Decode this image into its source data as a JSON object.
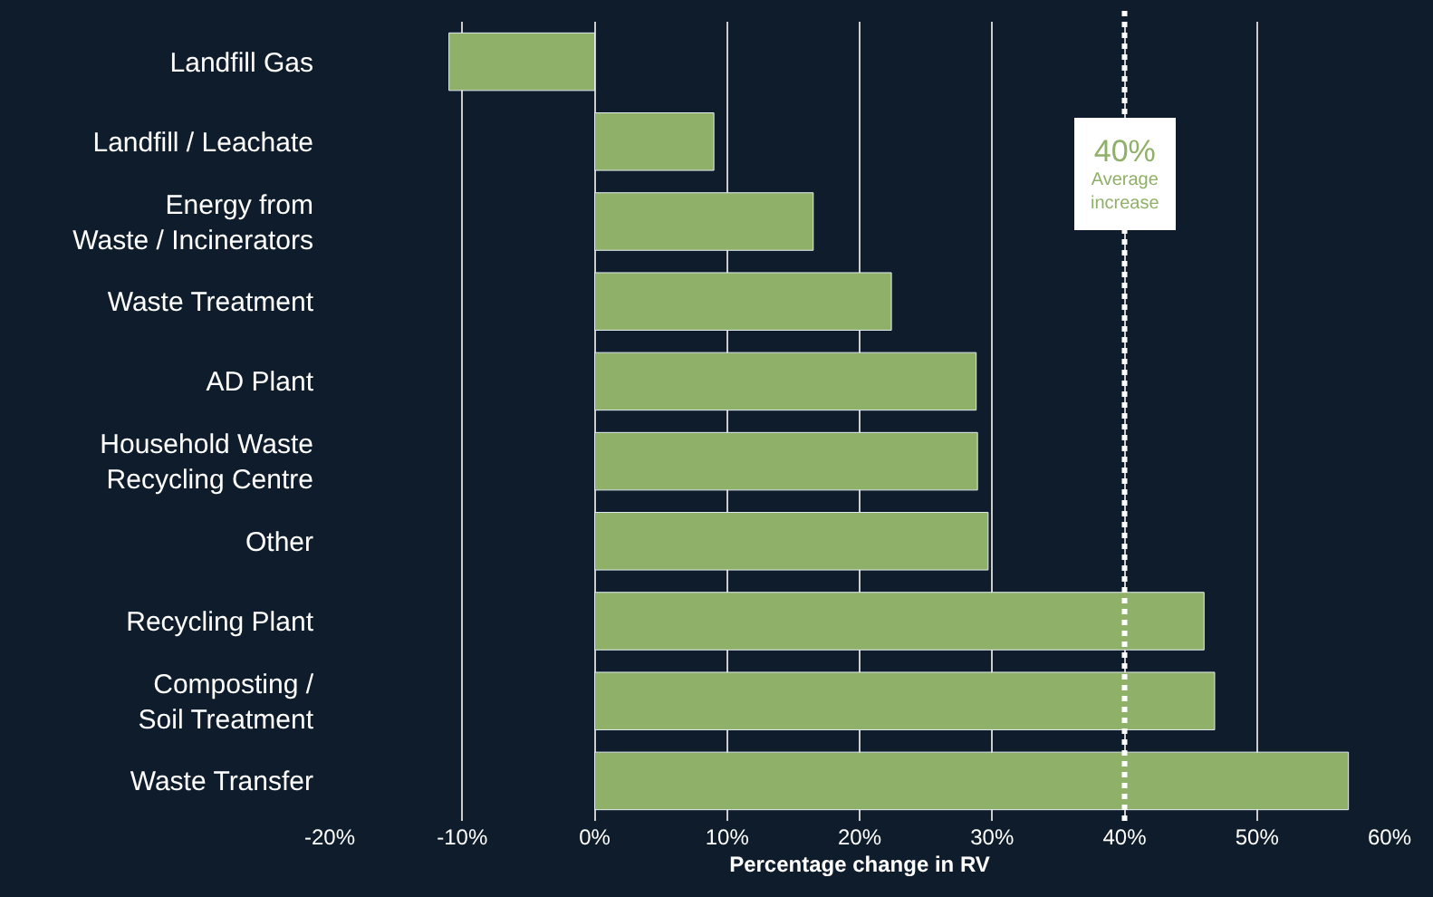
{
  "chart_data": {
    "type": "bar",
    "orientation": "horizontal",
    "xlabel": "Percentage change in RV",
    "categories": [
      "Landfill Gas",
      "Landfill / Leachate",
      "Energy from\nWaste / Incinerators",
      "Waste Treatment",
      "AD Plant",
      "Household Waste\nRecycling Centre",
      "Other",
      "Recycling Plant",
      "Composting /\nSoil Treatment",
      "Waste Transfer"
    ],
    "values": [
      -11,
      9,
      16.5,
      22.4,
      28.8,
      28.9,
      29.7,
      46,
      46.8,
      56.9
    ],
    "color": "#8fb068",
    "xlim": [
      -20,
      60
    ],
    "xticks": [
      {
        "value": -20,
        "label": "-20%"
      },
      {
        "value": -10,
        "label": "-10%"
      },
      {
        "value": 0,
        "label": "0%"
      },
      {
        "value": 10,
        "label": "10%"
      },
      {
        "value": 20,
        "label": "20%"
      },
      {
        "value": 30,
        "label": "30%"
      },
      {
        "value": 40,
        "label": "40%"
      },
      {
        "value": 50,
        "label": "50%"
      },
      {
        "value": 60,
        "label": "60%"
      }
    ],
    "grid": "x",
    "ref_lines": [
      {
        "axis": "x",
        "value": 40,
        "label": "40%\nAverage\nincrease",
        "color": "#ffffff",
        "line_style": "dotted"
      }
    ]
  }
}
